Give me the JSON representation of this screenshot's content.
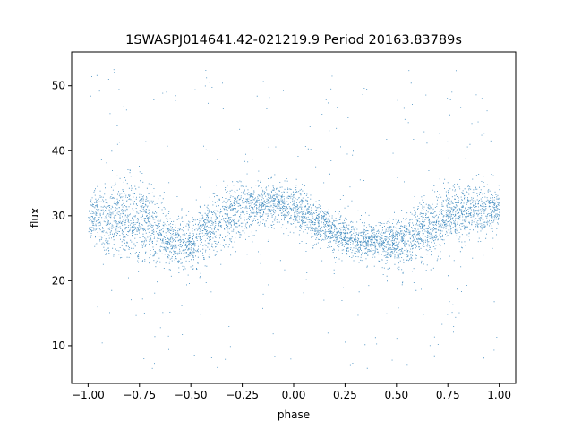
{
  "chart_data": {
    "type": "scatter",
    "title": "1SWASPJ014641.42-021219.9 Period 20163.83789s",
    "xlabel": "phase",
    "ylabel": "flux",
    "xlim": [
      -1.08,
      1.08
    ],
    "ylim": [
      4.2,
      55.2
    ],
    "xticks": [
      -1.0,
      -0.75,
      -0.5,
      -0.25,
      0.0,
      0.25,
      0.5,
      0.75,
      1.0
    ],
    "xtick_labels": [
      "−1.00",
      "−0.75",
      "−0.50",
      "−0.25",
      "0.00",
      "0.25",
      "0.50",
      "0.75",
      "1.00"
    ],
    "yticks": [
      10,
      20,
      30,
      40,
      50
    ],
    "ytick_labels": [
      "10",
      "20",
      "30",
      "40",
      "50"
    ],
    "grid": false,
    "legend": "none",
    "marker_color": "#1f77b4",
    "x_range": [
      -1.0,
      1.0
    ],
    "dense_band": {
      "phase": [
        -1.0,
        -0.9,
        -0.8,
        -0.7,
        -0.6,
        -0.5,
        -0.4,
        -0.3,
        -0.2,
        -0.1,
        0.0,
        0.1,
        0.2,
        0.3,
        0.4,
        0.5,
        0.6,
        0.7,
        0.8,
        0.9,
        1.0
      ],
      "upper": [
        32.0,
        35.0,
        35.5,
        33.5,
        30.0,
        30.0,
        32.5,
        34.5,
        35.0,
        35.0,
        34.0,
        32.5,
        30.0,
        29.0,
        28.5,
        29.0,
        31.0,
        33.5,
        35.0,
        35.0,
        34.0
      ],
      "lower": [
        27.0,
        25.0,
        24.0,
        23.5,
        23.0,
        22.0,
        23.5,
        26.0,
        28.5,
        29.0,
        28.0,
        26.0,
        24.5,
        24.0,
        23.5,
        22.5,
        23.0,
        24.5,
        26.5,
        27.0,
        28.0
      ]
    },
    "outlier_range": [
      6.5,
      53.0
    ]
  }
}
